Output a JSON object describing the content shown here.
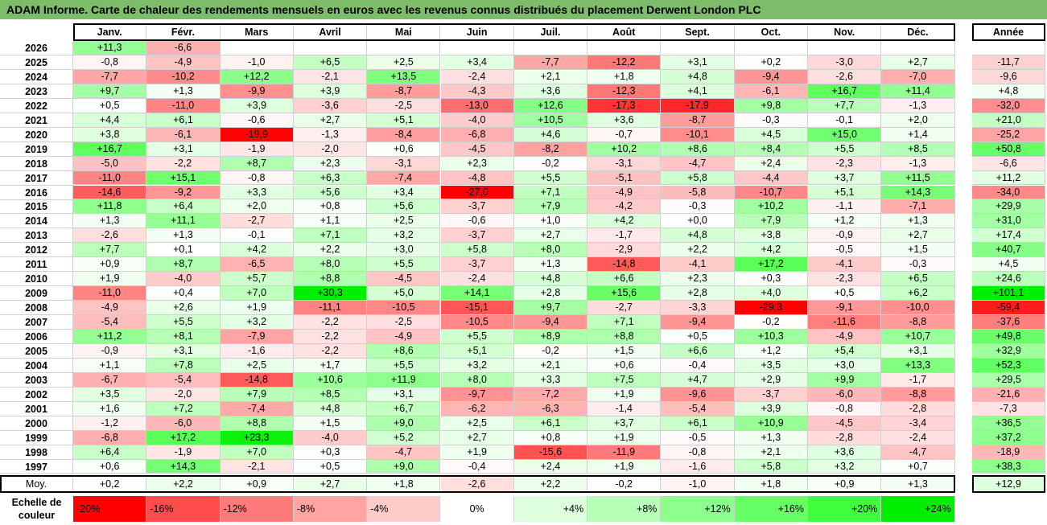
{
  "title": "ADAM Informe. Carte de chaleur des rendements mensuels en euros avec les revenus connus distribués du placement Derwent London PLC",
  "months": [
    "Janv.",
    "Févr.",
    "Mars",
    "Avril",
    "Mai",
    "Juin",
    "Juil.",
    "Août",
    "Sept.",
    "Oct.",
    "Nov.",
    "Déc."
  ],
  "year_header": "Année",
  "avg_label": "Moy.",
  "scale_label_line1": "Echelle de",
  "scale_label_line2": "couleur",
  "chart_data": {
    "type": "heatmap",
    "title": "ADAM Informe. Carte de chaleur des rendements mensuels en euros avec les revenus connus distribués du placement Derwent London PLC",
    "rows": [
      {
        "year": "2026",
        "months": [
          "+11,3",
          "-6,6",
          null,
          null,
          null,
          null,
          null,
          null,
          null,
          null,
          null,
          null
        ],
        "annual": null
      },
      {
        "year": "2025",
        "months": [
          "-0,8",
          "-4,9",
          "-1,0",
          "+6,5",
          "+2,5",
          "+3,4",
          "-7,7",
          "-12,2",
          "+3,1",
          "+0,2",
          "-3,0",
          "+2,7"
        ],
        "annual": "-11,7"
      },
      {
        "year": "2024",
        "months": [
          "-7,7",
          "-10,2",
          "+12,2",
          "-2,1",
          "+13,5",
          "-2,4",
          "+2,1",
          "+1,8",
          "+4,8",
          "-9,4",
          "-2,6",
          "-7,0"
        ],
        "annual": "-9,6"
      },
      {
        "year": "2023",
        "months": [
          "+9,7",
          "+1,3",
          "-9,9",
          "+3,9",
          "-8,7",
          "-4,3",
          "+3,6",
          "-12,3",
          "+4,1",
          "-6,1",
          "+16,7",
          "+11,4"
        ],
        "annual": "+4,8"
      },
      {
        "year": "2022",
        "months": [
          "+0,5",
          "-11,0",
          "+3,9",
          "-3,6",
          "-2,5",
          "-13,0",
          "+12,6",
          "-17,3",
          "-17,9",
          "+9,8",
          "+7,7",
          "-1,3"
        ],
        "annual": "-32,0"
      },
      {
        "year": "2021",
        "months": [
          "+4,4",
          "+6,1",
          "-0,6",
          "+2,7",
          "+5,1",
          "-4,0",
          "+10,5",
          "+3,6",
          "-8,7",
          "-0,3",
          "-0,1",
          "+2,0"
        ],
        "annual": "+21,0"
      },
      {
        "year": "2020",
        "months": [
          "+3,8",
          "-6,1",
          "-19,9",
          "-1,3",
          "-8,4",
          "-6,8",
          "+4,6",
          "-0,7",
          "-10,1",
          "+4,5",
          "+15,0",
          "+1,4"
        ],
        "annual": "-25,2"
      },
      {
        "year": "2019",
        "months": [
          "+16,7",
          "+3,1",
          "-1,9",
          "-2,0",
          "+0,6",
          "-4,5",
          "-8,2",
          "+10,2",
          "+8,6",
          "+8,4",
          "+5,5",
          "+8,5"
        ],
        "annual": "+50,8"
      },
      {
        "year": "2018",
        "months": [
          "-5,0",
          "-2,2",
          "+8,7",
          "+2,3",
          "-3,1",
          "+2,3",
          "-0,2",
          "-3,1",
          "-4,7",
          "+2,4",
          "-2,3",
          "-1,3"
        ],
        "annual": "-6,6"
      },
      {
        "year": "2017",
        "months": [
          "-11,0",
          "+15,1",
          "-0,8",
          "+6,3",
          "-7,4",
          "-4,8",
          "+5,5",
          "-5,1",
          "+5,8",
          "-4,4",
          "+3,7",
          "+11,5"
        ],
        "annual": "+11,2"
      },
      {
        "year": "2016",
        "months": [
          "-14,6",
          "-9,2",
          "+3,3",
          "+5,6",
          "+3,4",
          "-27,0",
          "+7,1",
          "-4,9",
          "-5,8",
          "-10,7",
          "+5,1",
          "+14,3"
        ],
        "annual": "-34,0"
      },
      {
        "year": "2015",
        "months": [
          "+11,8",
          "+6,4",
          "+2,0",
          "+0,8",
          "+5,6",
          "-3,7",
          "+7,9",
          "-4,2",
          "-0,3",
          "+10,2",
          "-1,1",
          "-7,1"
        ],
        "annual": "+29,9"
      },
      {
        "year": "2014",
        "months": [
          "+1,3",
          "+11,1",
          "-2,7",
          "+1,1",
          "+2,5",
          "-0,6",
          "+1,0",
          "+4,2",
          "+0,0",
          "+7,9",
          "+1,2",
          "+1,3"
        ],
        "annual": "+31,0"
      },
      {
        "year": "2013",
        "months": [
          "-2,6",
          "+1,3",
          "-0,1",
          "+7,1",
          "+3,2",
          "-3,7",
          "+2,7",
          "-1,7",
          "+4,8",
          "+3,8",
          "-0,9",
          "+2,7"
        ],
        "annual": "+17,4"
      },
      {
        "year": "2012",
        "months": [
          "+7,7",
          "+0,1",
          "+4,2",
          "+2,2",
          "+3,0",
          "+5,8",
          "+8,0",
          "-2,9",
          "+2,2",
          "+4,2",
          "-0,5",
          "+1,5"
        ],
        "annual": "+40,7"
      },
      {
        "year": "2011",
        "months": [
          "+0,9",
          "+8,7",
          "-6,5",
          "+8,0",
          "+5,5",
          "-3,7",
          "+1,3",
          "-14,8",
          "-4,1",
          "+17,2",
          "-4,1",
          "-0,3"
        ],
        "annual": "+4,5"
      },
      {
        "year": "2010",
        "months": [
          "+1,9",
          "-4,0",
          "+5,7",
          "+8,8",
          "-4,5",
          "-2,4",
          "+4,8",
          "+6,6",
          "+2,3",
          "+0,3",
          "-2,3",
          "+6,5"
        ],
        "annual": "+24,6"
      },
      {
        "year": "2009",
        "months": [
          "-11,0",
          "+0,4",
          "+7,0",
          "+30,3",
          "+5,0",
          "+14,1",
          "+2,8",
          "+15,6",
          "+2,8",
          "+4,0",
          "+0,5",
          "+6,2"
        ],
        "annual": "+101,1"
      },
      {
        "year": "2008",
        "months": [
          "-4,9",
          "+2,6",
          "+1,9",
          "-11,1",
          "-10,5",
          "-15,1",
          "+9,7",
          "-2,7",
          "-3,3",
          "-29,3",
          "-9,1",
          "-10,0"
        ],
        "annual": "-59,4"
      },
      {
        "year": "2007",
        "months": [
          "-5,4",
          "+5,5",
          "+3,2",
          "-2,2",
          "-2,5",
          "-10,5",
          "-9,4",
          "+7,1",
          "-9,4",
          "-0,2",
          "-11,6",
          "-8,8"
        ],
        "annual": "-37,6"
      },
      {
        "year": "2006",
        "months": [
          "+11,2",
          "+8,1",
          "-7,9",
          "-2,2",
          "-4,9",
          "+5,5",
          "+8,9",
          "+8,8",
          "+0,5",
          "+10,3",
          "-4,9",
          "+10,7"
        ],
        "annual": "+49,8"
      },
      {
        "year": "2005",
        "months": [
          "-0,9",
          "+3,1",
          "-1,6",
          "-2,2",
          "+8,6",
          "+5,1",
          "-0,2",
          "+1,5",
          "+6,6",
          "+1,2",
          "+5,4",
          "+3,1"
        ],
        "annual": "+32,9"
      },
      {
        "year": "2004",
        "months": [
          "+1,1",
          "+7,8",
          "+2,5",
          "+1,7",
          "+5,5",
          "+3,2",
          "+2,1",
          "+0,6",
          "-0,4",
          "+3,5",
          "+3,0",
          "+13,3"
        ],
        "annual": "+52,3"
      },
      {
        "year": "2003",
        "months": [
          "-6,7",
          "-5,4",
          "-14,8",
          "+10,6",
          "+11,9",
          "+8,0",
          "+3,3",
          "+7,5",
          "+4,7",
          "+2,9",
          "+9,9",
          "-1,7"
        ],
        "annual": "+29,5"
      },
      {
        "year": "2002",
        "months": [
          "+3,5",
          "-2,0",
          "+7,9",
          "+8,5",
          "+3,1",
          "-9,7",
          "-7,2",
          "+1,9",
          "-9,6",
          "-3,7",
          "-6,0",
          "-8,8"
        ],
        "annual": "-21,6"
      },
      {
        "year": "2001",
        "months": [
          "+1,6",
          "+7,2",
          "-7,4",
          "+4,8",
          "+6,7",
          "-6,2",
          "-6,3",
          "-1,4",
          "-5,4",
          "+3,9",
          "-0,8",
          "-2,8"
        ],
        "annual": "-7,3"
      },
      {
        "year": "2000",
        "months": [
          "-1,2",
          "-6,0",
          "+8,8",
          "+1,5",
          "+9,0",
          "+2,5",
          "+6,1",
          "+3,7",
          "+6,1",
          "+10,9",
          "-4,5",
          "-3,4"
        ],
        "annual": "+36,5"
      },
      {
        "year": "1999",
        "months": [
          "-6,8",
          "+17,2",
          "+23,3",
          "-4,0",
          "+5,2",
          "+2,7",
          "+0,8",
          "+1,9",
          "-0,5",
          "+1,3",
          "-2,8",
          "-2,4"
        ],
        "annual": "+37,2"
      },
      {
        "year": "1998",
        "months": [
          "+6,4",
          "-1,9",
          "+7,0",
          "+0,3",
          "-4,7",
          "+1,9",
          "-15,6",
          "-11,9",
          "-0,8",
          "+2,1",
          "+3,6",
          "-4,7"
        ],
        "annual": "-18,9"
      },
      {
        "year": "1997",
        "months": [
          "+0,6",
          "+14,3",
          "-2,1",
          "+0,5",
          "+9,0",
          "-0,4",
          "+2,4",
          "+1,9",
          "-1,6",
          "+5,8",
          "+3,2",
          "+0,7"
        ],
        "annual": "+38,3"
      }
    ],
    "average": {
      "months": [
        "+0,2",
        "+2,2",
        "+0,9",
        "+2,7",
        "+1,8",
        "-2,6",
        "+2,2",
        "-0,2",
        "-1,0",
        "+1,8",
        "+0,9",
        "+1,3"
      ],
      "annual": "+12,9"
    },
    "color_scale": [
      {
        "label": "-20%",
        "value": -20,
        "color": "#ff0000"
      },
      {
        "label": "-16%",
        "value": -16,
        "color": "#ff4d4d"
      },
      {
        "label": "-12%",
        "value": -12,
        "color": "#ff7a7a"
      },
      {
        "label": "-8%",
        "value": -8,
        "color": "#ffa3a3"
      },
      {
        "label": "-4%",
        "value": -4,
        "color": "#ffcccc"
      },
      {
        "label": "0%",
        "value": 0,
        "color": "#ffffff"
      },
      {
        "label": "+4%",
        "value": 4,
        "color": "#ddffdd"
      },
      {
        "label": "+8%",
        "value": 8,
        "color": "#b8ffb8"
      },
      {
        "label": "+12%",
        "value": 12,
        "color": "#8cff8c"
      },
      {
        "label": "+16%",
        "value": 16,
        "color": "#66ff66"
      },
      {
        "label": "+20%",
        "value": 20,
        "color": "#3dff3d"
      },
      {
        "label": "+24%",
        "value": 24,
        "color": "#00ee00"
      }
    ]
  }
}
